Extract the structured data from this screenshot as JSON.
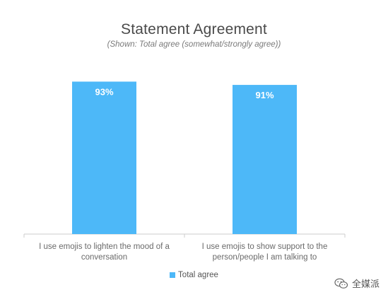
{
  "chart_data": {
    "type": "bar",
    "title": "Statement Agreement",
    "subtitle": "(Shown: Total agree (somewhat/strongly agree))",
    "categories": [
      [
        "I use emojis to lighten the mood of a",
        "conversation"
      ],
      [
        "I use emojis to show support to the",
        "person/people I am talking to"
      ]
    ],
    "series": [
      {
        "name": "Total agree",
        "values": [
          93,
          91
        ],
        "data_labels": [
          "93%",
          "91%"
        ],
        "color": "#4db8f8"
      }
    ],
    "ylim": [
      0,
      100
    ],
    "grid": false,
    "legend_position": "bottom"
  },
  "colors": {
    "bar": "#4db8f8",
    "data_label": "#ffffff",
    "axis": "#cccccc"
  },
  "watermark": {
    "icon": "wechat-icon",
    "text": "全媒派"
  }
}
